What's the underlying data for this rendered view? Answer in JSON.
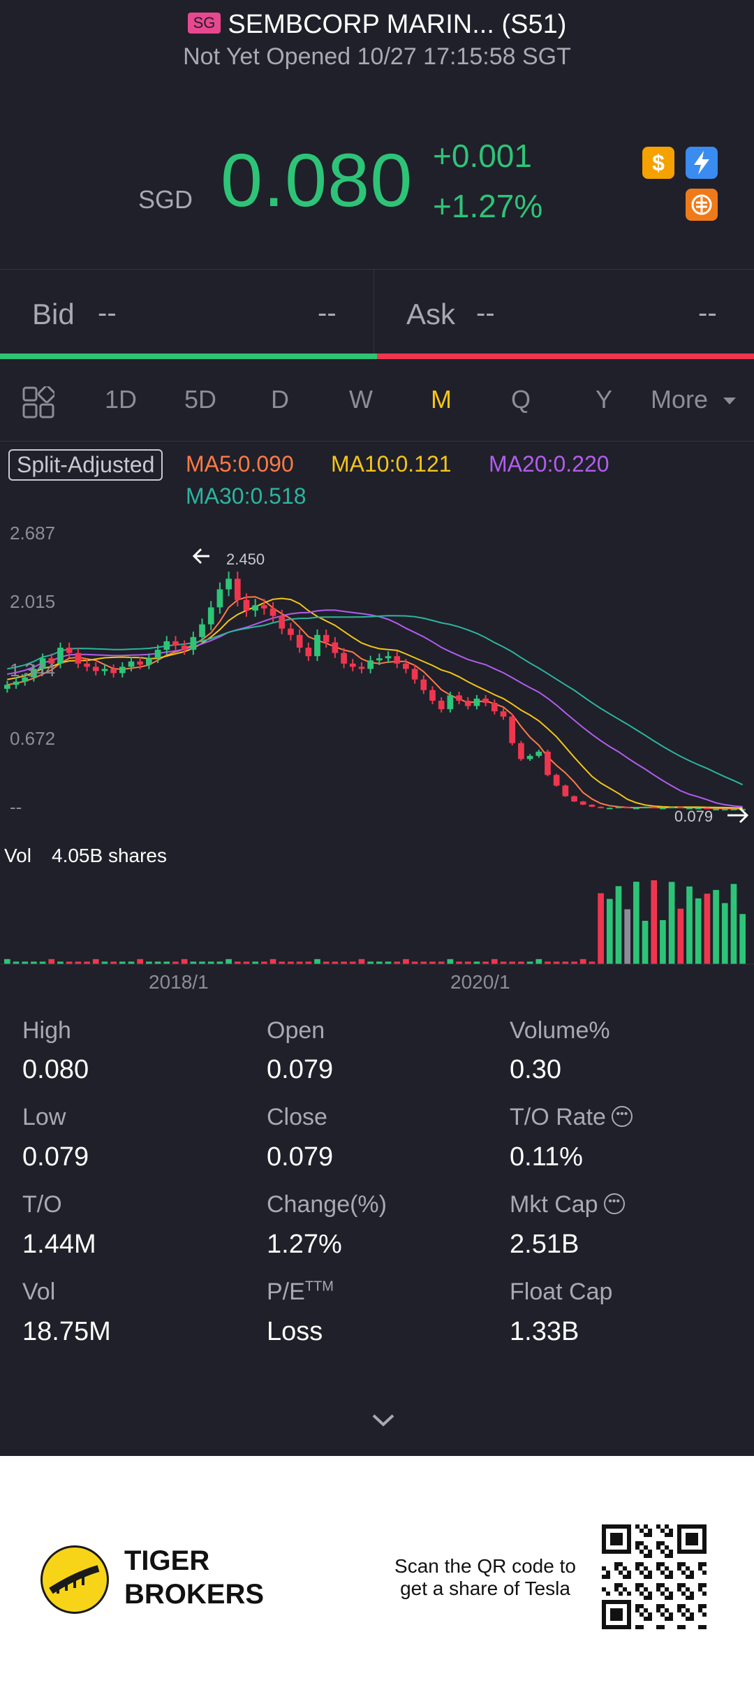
{
  "header": {
    "market_badge": "SG",
    "title": "SEMBCORP MARIN... (S51)",
    "status": "Not Yet Opened 10/27 17:15:58 SGT",
    "currency": "SGD",
    "price": "0.080",
    "change": "+0.001",
    "change_pct": "+1.27%",
    "icons": [
      "dollar-icon",
      "lightning-icon",
      "tiger-icon"
    ]
  },
  "bidask": {
    "bid_label": "Bid",
    "bid_price": "--",
    "bid_size": "--",
    "ask_label": "Ask",
    "ask_price": "--",
    "ask_size": "--"
  },
  "tabs": [
    {
      "label": "1D"
    },
    {
      "label": "5D"
    },
    {
      "label": "D"
    },
    {
      "label": "W"
    },
    {
      "label": "M",
      "active": true
    },
    {
      "label": "Q"
    },
    {
      "label": "Y"
    },
    {
      "label": "More"
    }
  ],
  "ma": {
    "split_label": "Split-Adjusted",
    "ma5": "MA5:0.090",
    "ma10": "MA10:0.121",
    "ma20": "MA20:0.220",
    "ma30": "MA30:0.518"
  },
  "chart_data": {
    "type": "candlestick",
    "y_ticks": [
      "2.687",
      "2.015",
      "1.344",
      "0.672",
      "--"
    ],
    "y_range": [
      0,
      2.687
    ],
    "x_ticks": [
      "2018/1",
      "2020/1"
    ],
    "max_marker": "2.450",
    "min_marker": "0.079",
    "volume_label": "Vol",
    "volume_value": "4.05B shares",
    "series": [
      {
        "name": "MA5",
        "color": "#ff7a45"
      },
      {
        "name": "MA10",
        "color": "#f5c518"
      },
      {
        "name": "MA20",
        "color": "#b25cf0"
      },
      {
        "name": "MA30",
        "color": "#2bb5a0"
      }
    ]
  },
  "stats": [
    {
      "label": "High",
      "value": "0.080"
    },
    {
      "label": "Open",
      "value": "0.079"
    },
    {
      "label": "Volume%",
      "value": "0.30"
    },
    {
      "label": "Low",
      "value": "0.079"
    },
    {
      "label": "Close",
      "value": "0.079"
    },
    {
      "label": "T/O Rate",
      "value": "0.11%",
      "info": true
    },
    {
      "label": "T/O",
      "value": "1.44M"
    },
    {
      "label": "Change(%)",
      "value": "1.27%"
    },
    {
      "label": "Mkt Cap",
      "value": "2.51B",
      "info": true
    },
    {
      "label": "Vol",
      "value": "18.75M"
    },
    {
      "label": "P/E",
      "sup": "TTM",
      "value": "Loss"
    },
    {
      "label": "Float Cap",
      "value": "1.33B"
    }
  ],
  "footer": {
    "brand_line1": "TIGER",
    "brand_line2": "BROKERS",
    "scan_line1": "Scan the QR code to",
    "scan_line2": "get a share of Tesla"
  },
  "colors": {
    "up": "#2ec478",
    "down": "#f0364f",
    "bg": "#1f2029",
    "accent": "#f5c518"
  }
}
